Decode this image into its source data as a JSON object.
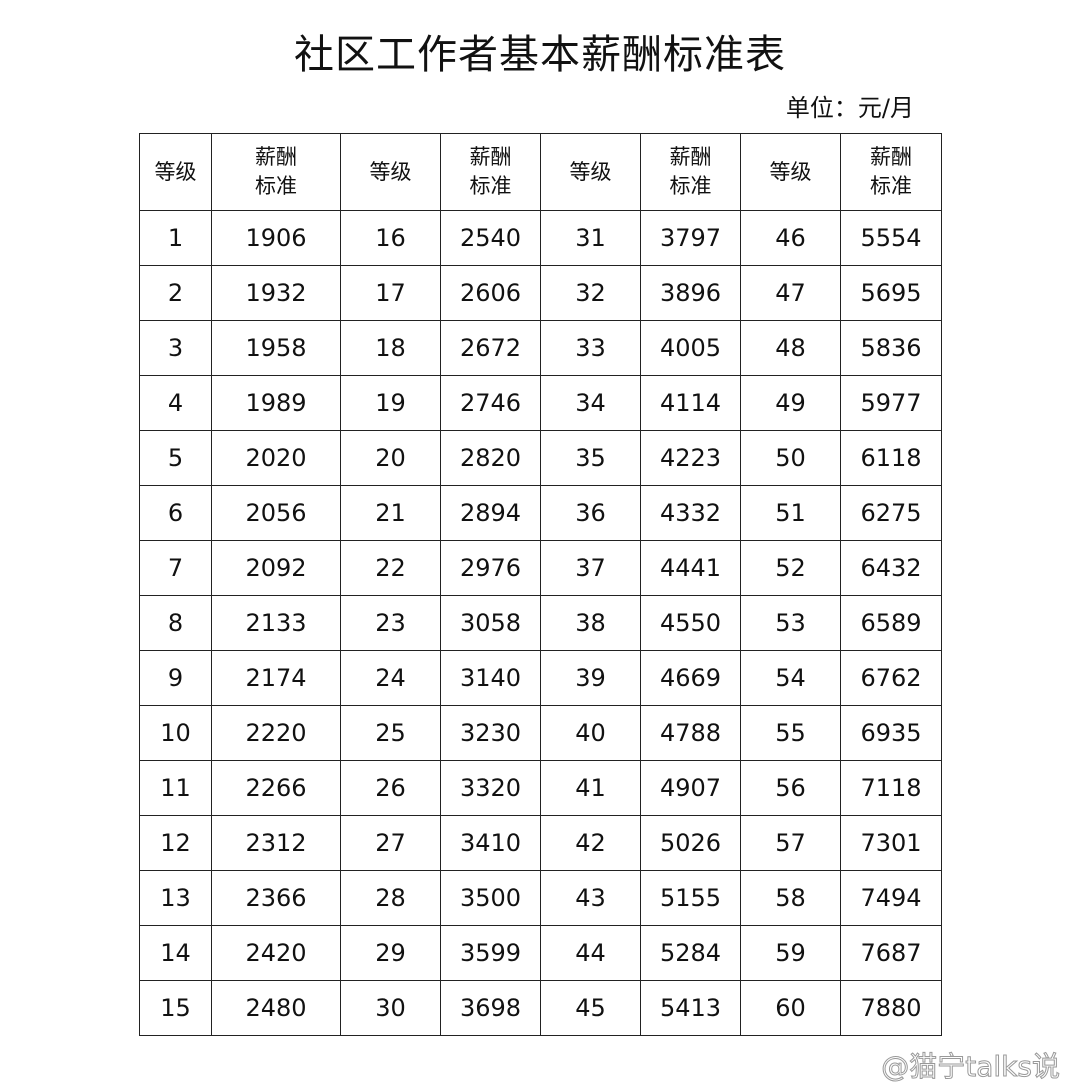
{
  "title": "社区工作者基本薪酬标准表",
  "unit": "单位：元/月",
  "table": {
    "headers": [
      "等级",
      "薪酬\n标准",
      "等级",
      "薪酬\n标准",
      "等级",
      "薪酬\n标准",
      "等级",
      "薪酬\n标准"
    ],
    "rows": [
      [
        "1",
        "1906",
        "16",
        "2540",
        "31",
        "3797",
        "46",
        "5554"
      ],
      [
        "2",
        "1932",
        "17",
        "2606",
        "32",
        "3896",
        "47",
        "5695"
      ],
      [
        "3",
        "1958",
        "18",
        "2672",
        "33",
        "4005",
        "48",
        "5836"
      ],
      [
        "4",
        "1989",
        "19",
        "2746",
        "34",
        "4114",
        "49",
        "5977"
      ],
      [
        "5",
        "2020",
        "20",
        "2820",
        "35",
        "4223",
        "50",
        "6118"
      ],
      [
        "6",
        "2056",
        "21",
        "2894",
        "36",
        "4332",
        "51",
        "6275"
      ],
      [
        "7",
        "2092",
        "22",
        "2976",
        "37",
        "4441",
        "52",
        "6432"
      ],
      [
        "8",
        "2133",
        "23",
        "3058",
        "38",
        "4550",
        "53",
        "6589"
      ],
      [
        "9",
        "2174",
        "24",
        "3140",
        "39",
        "4669",
        "54",
        "6762"
      ],
      [
        "10",
        "2220",
        "25",
        "3230",
        "40",
        "4788",
        "55",
        "6935"
      ],
      [
        "11",
        "2266",
        "26",
        "3320",
        "41",
        "4907",
        "56",
        "7118"
      ],
      [
        "12",
        "2312",
        "27",
        "3410",
        "42",
        "5026",
        "57",
        "7301"
      ],
      [
        "13",
        "2366",
        "28",
        "3500",
        "43",
        "5155",
        "58",
        "7494"
      ],
      [
        "14",
        "2420",
        "29",
        "3599",
        "44",
        "5284",
        "59",
        "7687"
      ],
      [
        "15",
        "2480",
        "30",
        "3698",
        "45",
        "5413",
        "60",
        "7880"
      ]
    ]
  },
  "watermark": "@猫宁talks说"
}
